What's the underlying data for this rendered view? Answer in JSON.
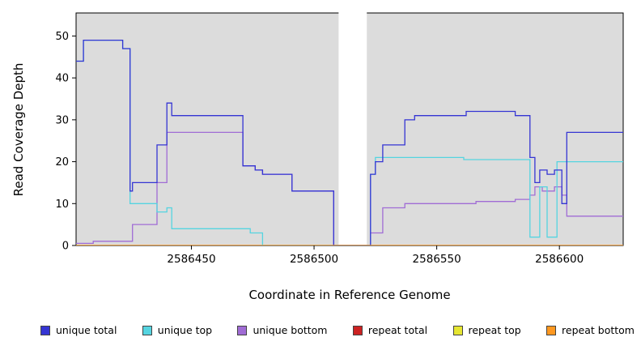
{
  "figure": {
    "background": "#ffffff",
    "panel_background": "#dcdcdc"
  },
  "chart_data": {
    "type": "line",
    "subtype": "step",
    "title": "",
    "xlabel": "Coordinate in Reference Genome",
    "ylabel": "Read Coverage Depth",
    "xlim": [
      2586403,
      2586626
    ],
    "ylim": [
      0,
      55.5
    ],
    "grid": false,
    "legend_position": "bottom",
    "panel_bg": "#dcdcdc",
    "gap_region": [
      2586510,
      2586521.5
    ],
    "xticks": [
      {
        "v": 2586450,
        "label": "2586450"
      },
      {
        "v": 2586500,
        "label": "2586500"
      },
      {
        "v": 2586550,
        "label": "2586550"
      },
      {
        "v": 2586600,
        "label": "2586600"
      }
    ],
    "yticks": [
      {
        "v": 0,
        "label": "0"
      },
      {
        "v": 10,
        "label": "10"
      },
      {
        "v": 20,
        "label": "20"
      },
      {
        "v": 30,
        "label": "30"
      },
      {
        "v": 40,
        "label": "40"
      },
      {
        "v": 50,
        "label": "50"
      }
    ],
    "series": [
      {
        "name": "repeat total",
        "color": "#cc2222",
        "points": [
          [
            2586403,
            0
          ],
          [
            2586626,
            0
          ]
        ]
      },
      {
        "name": "repeat top",
        "color": "#e6e632",
        "points": [
          [
            2586403,
            0
          ],
          [
            2586626,
            0
          ]
        ]
      },
      {
        "name": "unique bottom",
        "color": "#a06cd5",
        "points": [
          [
            2586403,
            0.5
          ],
          [
            2586410,
            1
          ],
          [
            2586426,
            5
          ],
          [
            2586436,
            15
          ],
          [
            2586440,
            27
          ],
          [
            2586471,
            19
          ],
          [
            2586476,
            18
          ],
          [
            2586479,
            17
          ],
          [
            2586491,
            13
          ],
          [
            2586508,
            0
          ],
          [
            2586523,
            3
          ],
          [
            2586528,
            9
          ],
          [
            2586537,
            10
          ],
          [
            2586566,
            10.5
          ],
          [
            2586582,
            11
          ],
          [
            2586588,
            12
          ],
          [
            2586590,
            14
          ],
          [
            2586593,
            13
          ],
          [
            2586598,
            14
          ],
          [
            2586601,
            12
          ],
          [
            2586603,
            7
          ],
          [
            2586626,
            7
          ]
        ]
      },
      {
        "name": "unique top",
        "color": "#55d4e0",
        "points": [
          [
            2586403,
            44
          ],
          [
            2586406,
            49
          ],
          [
            2586422,
            47
          ],
          [
            2586425,
            10
          ],
          [
            2586436,
            8
          ],
          [
            2586440,
            9
          ],
          [
            2586442,
            4
          ],
          [
            2586474,
            3
          ],
          [
            2586479,
            0
          ],
          [
            2586508,
            0
          ],
          [
            2586523,
            17
          ],
          [
            2586525,
            21
          ],
          [
            2586561,
            20.5
          ],
          [
            2586588,
            2
          ],
          [
            2586592,
            14
          ],
          [
            2586595,
            2
          ],
          [
            2586599,
            20
          ],
          [
            2586626,
            20
          ]
        ]
      },
      {
        "name": "unique total",
        "color": "#3535d3",
        "points": [
          [
            2586403,
            44
          ],
          [
            2586406,
            49
          ],
          [
            2586422,
            47
          ],
          [
            2586425,
            13
          ],
          [
            2586426,
            15
          ],
          [
            2586436,
            24
          ],
          [
            2586440,
            34
          ],
          [
            2586442,
            31
          ],
          [
            2586471,
            19
          ],
          [
            2586476,
            18
          ],
          [
            2586479,
            17
          ],
          [
            2586491,
            13
          ],
          [
            2586508,
            0
          ],
          [
            2586523,
            17
          ],
          [
            2586525,
            20
          ],
          [
            2586528,
            24
          ],
          [
            2586537,
            30
          ],
          [
            2586541,
            31
          ],
          [
            2586562,
            32
          ],
          [
            2586582,
            31
          ],
          [
            2586588,
            21
          ],
          [
            2586590,
            15
          ],
          [
            2586592,
            18
          ],
          [
            2586595,
            17
          ],
          [
            2586598,
            18
          ],
          [
            2586601,
            10
          ],
          [
            2586603,
            27
          ],
          [
            2586626,
            27
          ]
        ]
      },
      {
        "name": "repeat bottom",
        "color": "#ff9820",
        "points": [
          [
            2586403,
            0
          ],
          [
            2586626,
            0
          ]
        ]
      }
    ],
    "legend": [
      {
        "label": "unique total",
        "color": "#3535d3"
      },
      {
        "label": "unique top",
        "color": "#55d4e0"
      },
      {
        "label": "unique bottom",
        "color": "#a06cd5"
      },
      {
        "label": "repeat total",
        "color": "#cc2222"
      },
      {
        "label": "repeat top",
        "color": "#e6e632"
      },
      {
        "label": "repeat bottom",
        "color": "#ff9820"
      }
    ]
  }
}
